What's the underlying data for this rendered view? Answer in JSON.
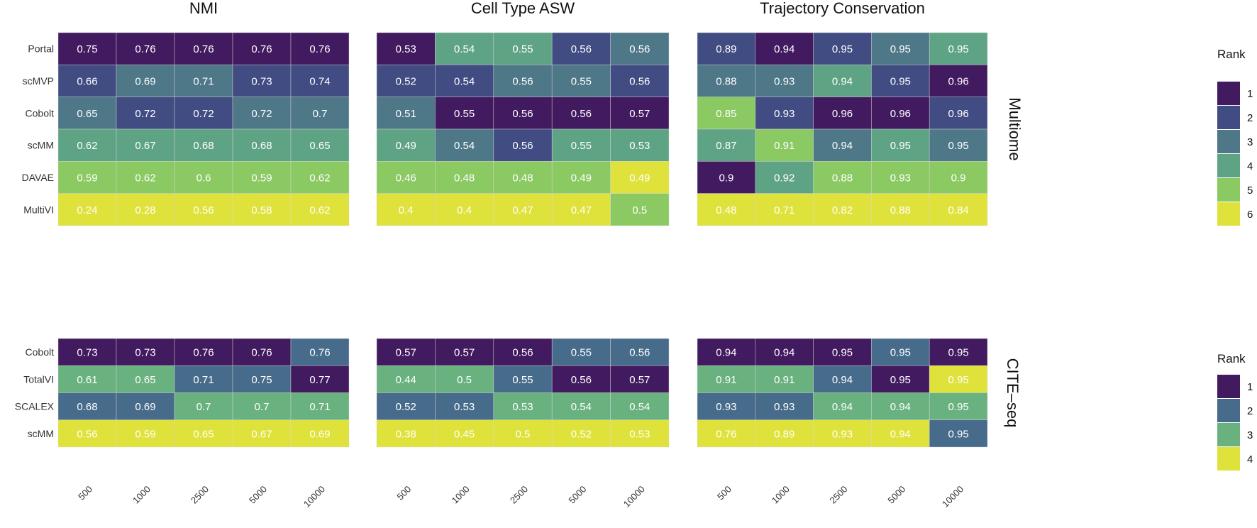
{
  "chart_data": {
    "type": "heatmap",
    "x_ticks": [
      "500",
      "1000",
      "2500",
      "5000",
      "10000"
    ],
    "metrics": [
      "NMI",
      "Cell Type ASW",
      "Trajectory Conservation"
    ],
    "legend_title": "Rank",
    "rank_colors_6": [
      "#421a60",
      "#414c83",
      "#4e7788",
      "#5fa385",
      "#8bc963",
      "#dfe23a"
    ],
    "rank_colors_4": [
      "#421a60",
      "#476b8a",
      "#69b27f",
      "#dfe23a"
    ],
    "facets": [
      {
        "name": "Multiome",
        "rows": [
          "Portal",
          "scMVP",
          "Cobolt",
          "scMM",
          "DAVAE",
          "MultiVI"
        ],
        "legend_levels": [
          "1",
          "2",
          "3",
          "4",
          "5",
          "6"
        ],
        "panels": [
          {
            "metric": "NMI",
            "values": [
              [
                "0.75",
                "0.76",
                "0.76",
                "0.76",
                "0.76"
              ],
              [
                "0.66",
                "0.69",
                "0.71",
                "0.73",
                "0.74"
              ],
              [
                "0.65",
                "0.72",
                "0.72",
                "0.72",
                "0.7"
              ],
              [
                "0.62",
                "0.67",
                "0.68",
                "0.68",
                "0.65"
              ],
              [
                "0.59",
                "0.62",
                "0.6",
                "0.59",
                "0.62"
              ],
              [
                "0.24",
                "0.28",
                "0.56",
                "0.58",
                "0.62"
              ]
            ],
            "ranks": [
              [
                1,
                1,
                1,
                1,
                1
              ],
              [
                2,
                3,
                3,
                2,
                2
              ],
              [
                3,
                2,
                2,
                3,
                3
              ],
              [
                4,
                4,
                4,
                4,
                4
              ],
              [
                5,
                5,
                5,
                5,
                5
              ],
              [
                6,
                6,
                6,
                6,
                6
              ]
            ]
          },
          {
            "metric": "Cell Type ASW",
            "values": [
              [
                "0.53",
                "0.54",
                "0.55",
                "0.56",
                "0.56"
              ],
              [
                "0.52",
                "0.54",
                "0.56",
                "0.55",
                "0.56"
              ],
              [
                "0.51",
                "0.55",
                "0.56",
                "0.56",
                "0.57"
              ],
              [
                "0.49",
                "0.54",
                "0.56",
                "0.55",
                "0.53"
              ],
              [
                "0.46",
                "0.48",
                "0.48",
                "0.49",
                "0.49"
              ],
              [
                "0.4",
                "0.4",
                "0.47",
                "0.47",
                "0.5"
              ]
            ],
            "ranks": [
              [
                1,
                4,
                4,
                2,
                3
              ],
              [
                2,
                2,
                3,
                3,
                2
              ],
              [
                3,
                1,
                1,
                1,
                1
              ],
              [
                4,
                3,
                2,
                4,
                4
              ],
              [
                5,
                5,
                5,
                5,
                6
              ],
              [
                6,
                6,
                6,
                6,
                5
              ]
            ]
          },
          {
            "metric": "Trajectory Conservation",
            "values": [
              [
                "0.89",
                "0.94",
                "0.95",
                "0.95",
                "0.95"
              ],
              [
                "0.88",
                "0.93",
                "0.94",
                "0.95",
                "0.96"
              ],
              [
                "0.85",
                "0.93",
                "0.96",
                "0.96",
                "0.96"
              ],
              [
                "0.87",
                "0.91",
                "0.94",
                "0.95",
                "0.95"
              ],
              [
                "0.9",
                "0.92",
                "0.88",
                "0.93",
                "0.9"
              ],
              [
                "0.48",
                "0.71",
                "0.82",
                "0.88",
                "0.84"
              ]
            ],
            "ranks": [
              [
                2,
                1,
                2,
                3,
                4
              ],
              [
                3,
                3,
                4,
                2,
                1
              ],
              [
                5,
                2,
                1,
                1,
                2
              ],
              [
                4,
                5,
                3,
                4,
                3
              ],
              [
                1,
                4,
                5,
                5,
                5
              ],
              [
                6,
                6,
                6,
                6,
                6
              ]
            ]
          }
        ]
      },
      {
        "name": "CITE–seq",
        "rows": [
          "Cobolt",
          "TotalVI",
          "SCALEX",
          "scMM"
        ],
        "legend_levels": [
          "1",
          "2",
          "3",
          "4"
        ],
        "panels": [
          {
            "metric": "NMI",
            "values": [
              [
                "0.73",
                "0.73",
                "0.76",
                "0.76",
                "0.76"
              ],
              [
                "0.61",
                "0.65",
                "0.71",
                "0.75",
                "0.77"
              ],
              [
                "0.68",
                "0.69",
                "0.7",
                "0.7",
                "0.71"
              ],
              [
                "0.56",
                "0.59",
                "0.65",
                "0.67",
                "0.69"
              ]
            ],
            "ranks": [
              [
                1,
                1,
                1,
                1,
                2
              ],
              [
                3,
                3,
                2,
                2,
                1
              ],
              [
                2,
                2,
                3,
                3,
                3
              ],
              [
                4,
                4,
                4,
                4,
                4
              ]
            ]
          },
          {
            "metric": "Cell Type ASW",
            "values": [
              [
                "0.57",
                "0.57",
                "0.56",
                "0.55",
                "0.56"
              ],
              [
                "0.44",
                "0.5",
                "0.55",
                "0.56",
                "0.57"
              ],
              [
                "0.52",
                "0.53",
                "0.53",
                "0.54",
                "0.54"
              ],
              [
                "0.38",
                "0.45",
                "0.5",
                "0.52",
                "0.53"
              ]
            ],
            "ranks": [
              [
                1,
                1,
                1,
                2,
                2
              ],
              [
                3,
                3,
                2,
                1,
                1
              ],
              [
                2,
                2,
                3,
                3,
                3
              ],
              [
                4,
                4,
                4,
                4,
                4
              ]
            ]
          },
          {
            "metric": "Trajectory Conservation",
            "values": [
              [
                "0.94",
                "0.94",
                "0.95",
                "0.95",
                "0.95"
              ],
              [
                "0.91",
                "0.91",
                "0.94",
                "0.95",
                "0.95"
              ],
              [
                "0.93",
                "0.93",
                "0.94",
                "0.94",
                "0.95"
              ],
              [
                "0.76",
                "0.89",
                "0.93",
                "0.94",
                "0.95"
              ]
            ],
            "ranks": [
              [
                1,
                1,
                1,
                2,
                1
              ],
              [
                3,
                3,
                2,
                1,
                4
              ],
              [
                2,
                2,
                3,
                3,
                3
              ],
              [
                4,
                4,
                4,
                4,
                2
              ]
            ]
          }
        ]
      }
    ]
  }
}
